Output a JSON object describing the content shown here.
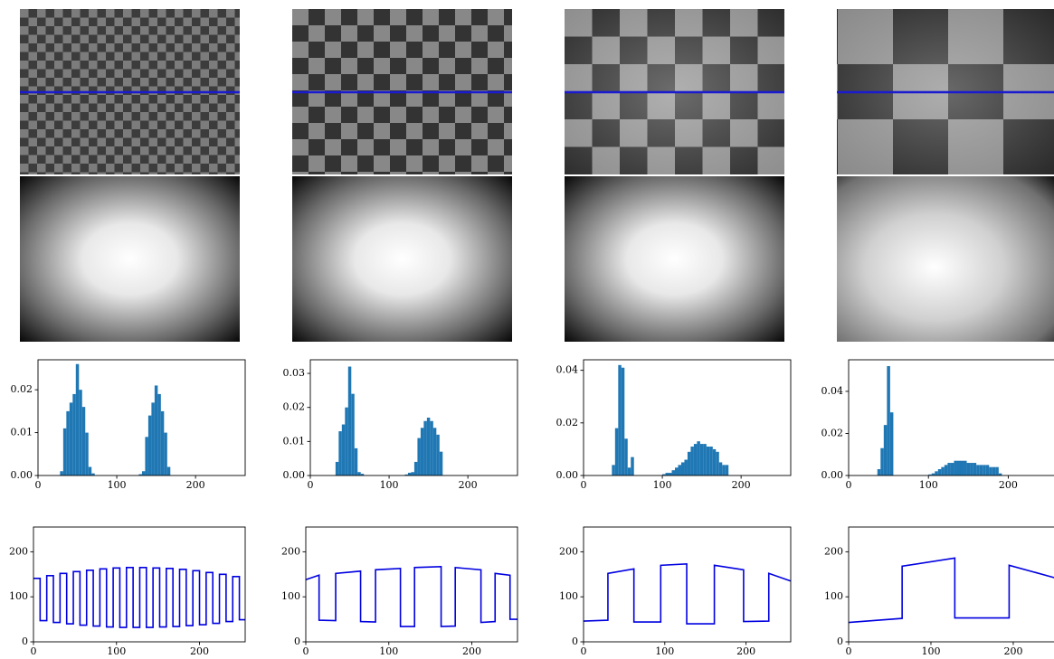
{
  "chart_data": [
    {
      "type": "histogram",
      "color": "#1f77b4",
      "bins": [
        28,
        32,
        36,
        40,
        44,
        48,
        52,
        56,
        60,
        64,
        68,
        72,
        76,
        80,
        84,
        88,
        92,
        96,
        100,
        104,
        108,
        112,
        116,
        120,
        124,
        128,
        132,
        136,
        140,
        144,
        148,
        152,
        156,
        160,
        164,
        168
      ],
      "values": [
        0.001,
        0.011,
        0.015,
        0.017,
        0.019,
        0.026,
        0.02,
        0.016,
        0.01,
        0.002,
        0.0005,
        0,
        0,
        0,
        0,
        0,
        0,
        0,
        0,
        0,
        0,
        0,
        0,
        0,
        0,
        0.0003,
        0.001,
        0.009,
        0.014,
        0.017,
        0.021,
        0.019,
        0.015,
        0.01,
        0.002
      ],
      "xlim": [
        0,
        263
      ],
      "ylim": [
        0,
        0.027
      ],
      "xticks": [
        0,
        100,
        200
      ],
      "yticks": [
        {
          "value": 0,
          "label": "0.00"
        },
        {
          "value": 0.01,
          "label": "0.01"
        },
        {
          "value": 0.02,
          "label": "0.02"
        }
      ]
    },
    {
      "type": "histogram",
      "color": "#1f77b4",
      "bins": [
        28,
        32,
        36,
        40,
        44,
        48,
        52,
        56,
        60,
        64,
        68,
        72,
        76,
        80,
        84,
        88,
        92,
        96,
        100,
        104,
        108,
        112,
        116,
        120,
        124,
        128,
        132,
        136,
        140,
        144,
        148,
        152,
        156,
        160,
        164,
        168,
        172
      ],
      "values": [
        0,
        0.004,
        0.013,
        0.015,
        0.02,
        0.032,
        0.024,
        0.008,
        0.001,
        0.0005,
        0,
        0,
        0,
        0,
        0,
        0,
        0,
        0,
        0,
        0,
        0,
        0,
        0,
        0.0003,
        0.0008,
        0.001,
        0.004,
        0.011,
        0.014,
        0.016,
        0.017,
        0.016,
        0.014,
        0.012,
        0.007,
        0
      ],
      "xlim": [
        0,
        263
      ],
      "ylim": [
        0,
        0.034
      ],
      "xticks": [
        0,
        100,
        200
      ],
      "yticks": [
        {
          "value": 0,
          "label": "0.00"
        },
        {
          "value": 0.01,
          "label": "0.01"
        },
        {
          "value": 0.02,
          "label": "0.02"
        },
        {
          "value": 0.03,
          "label": "0.03"
        }
      ]
    },
    {
      "type": "histogram",
      "color": "#1f77b4",
      "bins": [
        36,
        40,
        44,
        48,
        52,
        56,
        60,
        64,
        68,
        72,
        76,
        80,
        84,
        88,
        92,
        96,
        100,
        104,
        108,
        112,
        116,
        120,
        124,
        128,
        132,
        136,
        140,
        144,
        148,
        152,
        156,
        160,
        164,
        168,
        172,
        176,
        180,
        184,
        188
      ],
      "values": [
        0.004,
        0.018,
        0.042,
        0.041,
        0.014,
        0.003,
        0.007,
        0,
        0,
        0,
        0,
        0,
        0,
        0,
        0,
        0,
        0.0005,
        0.001,
        0.001,
        0.002,
        0.003,
        0.004,
        0.005,
        0.006,
        0.009,
        0.011,
        0.012,
        0.013,
        0.012,
        0.012,
        0.011,
        0.011,
        0.01,
        0.009,
        0.005,
        0.004,
        0.004,
        0
      ],
      "xlim": [
        0,
        263
      ],
      "ylim": [
        0,
        0.044
      ],
      "xticks": [
        0,
        100,
        200
      ],
      "yticks": [
        {
          "value": 0,
          "label": "0.00"
        },
        {
          "value": 0.02,
          "label": "0.02"
        },
        {
          "value": 0.04,
          "label": "0.04"
        }
      ]
    },
    {
      "type": "histogram",
      "color": "#1f77b4",
      "bins": [
        36,
        40,
        44,
        48,
        52,
        56,
        60,
        64,
        68,
        72,
        76,
        80,
        84,
        88,
        92,
        96,
        100,
        104,
        108,
        112,
        116,
        120,
        124,
        128,
        132,
        136,
        140,
        144,
        148,
        152,
        156,
        160,
        164,
        168,
        172,
        176,
        180,
        184,
        188,
        192
      ],
      "values": [
        0.003,
        0.013,
        0.024,
        0.052,
        0.03,
        0,
        0,
        0,
        0,
        0,
        0,
        0,
        0,
        0,
        0,
        0,
        0.0005,
        0.001,
        0.002,
        0.003,
        0.004,
        0.005,
        0.006,
        0.006,
        0.007,
        0.007,
        0.007,
        0.007,
        0.006,
        0.006,
        0.006,
        0.005,
        0.005,
        0.005,
        0.005,
        0.004,
        0.004,
        0.004,
        0.001
      ],
      "xlim": [
        0,
        263
      ],
      "ylim": [
        0,
        0.055
      ],
      "xticks": [
        0,
        100,
        200
      ],
      "yticks": [
        {
          "value": 0,
          "label": "0.00"
        },
        {
          "value": 0.02,
          "label": "0.02"
        },
        {
          "value": 0.04,
          "label": "0.04"
        }
      ]
    },
    {
      "type": "line",
      "color": "#0000e0",
      "x": [
        0,
        8,
        8,
        16,
        16,
        24,
        24,
        32,
        32,
        40,
        40,
        48,
        48,
        56,
        56,
        64,
        64,
        72,
        72,
        80,
        80,
        88,
        88,
        96,
        96,
        104,
        104,
        112,
        112,
        120,
        120,
        128,
        128,
        136,
        136,
        144,
        144,
        152,
        152,
        160,
        160,
        168,
        168,
        176,
        176,
        184,
        184,
        192,
        192,
        200,
        200,
        208,
        208,
        216,
        216,
        224,
        224,
        232,
        232,
        240,
        240,
        248,
        248,
        255
      ],
      "values": [
        141,
        141,
        47,
        47,
        147,
        147,
        43,
        43,
        152,
        152,
        40,
        40,
        156,
        156,
        37,
        37,
        159,
        159,
        35,
        35,
        162,
        162,
        33,
        33,
        164,
        164,
        32,
        32,
        165,
        165,
        32,
        32,
        165,
        165,
        32,
        32,
        164,
        164,
        33,
        33,
        163,
        163,
        34,
        34,
        161,
        161,
        36,
        36,
        158,
        158,
        38,
        38,
        154,
        154,
        41,
        41,
        150,
        150,
        45,
        45,
        145,
        145,
        49,
        49
      ],
      "xlim": [
        0,
        255
      ],
      "ylim": [
        0,
        255
      ],
      "xticks": [
        0,
        100,
        200
      ],
      "yticks": [
        0,
        100,
        200
      ]
    },
    {
      "type": "line",
      "color": "#0000e0",
      "x": [
        0,
        16,
        16,
        36,
        36,
        66,
        66,
        84,
        84,
        114,
        114,
        131,
        131,
        163,
        163,
        180,
        180,
        211,
        211,
        228,
        228,
        246,
        246,
        255
      ],
      "values": [
        138,
        148,
        48,
        47,
        152,
        157,
        45,
        44,
        160,
        163,
        34,
        34,
        165,
        167,
        34,
        35,
        165,
        160,
        43,
        45,
        152,
        148,
        50,
        50
      ],
      "xlim": [
        0,
        255
      ],
      "ylim": [
        0,
        255
      ],
      "xticks": [
        0,
        100,
        200
      ],
      "yticks": [
        0,
        100,
        200
      ]
    },
    {
      "type": "line",
      "color": "#0000e0",
      "x": [
        0,
        30,
        30,
        62,
        62,
        95,
        95,
        127,
        127,
        161,
        161,
        197,
        197,
        228,
        228,
        255
      ],
      "values": [
        46,
        48,
        152,
        162,
        44,
        44,
        170,
        173,
        40,
        40,
        170,
        160,
        45,
        46,
        152,
        135
      ],
      "xlim": [
        0,
        255
      ],
      "ylim": [
        0,
        255
      ],
      "xticks": [
        0,
        100,
        200
      ],
      "yticks": [
        0,
        100,
        200
      ]
    },
    {
      "type": "line",
      "color": "#0000e0",
      "x": [
        0,
        65,
        65,
        129,
        129,
        195,
        195,
        255
      ],
      "values": [
        43,
        52,
        168,
        186,
        53,
        53,
        170,
        140
      ],
      "xlim": [
        0,
        255
      ],
      "ylim": [
        0,
        255
      ],
      "xticks": [
        0,
        100,
        200
      ],
      "yticks": [
        0,
        100,
        200
      ]
    }
  ]
}
